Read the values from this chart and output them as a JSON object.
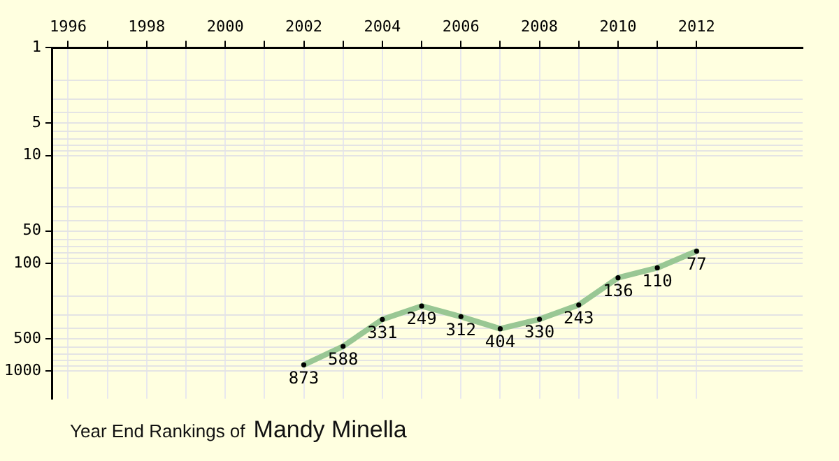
{
  "chart_data": {
    "type": "line",
    "title": "Year End Rankings of",
    "subtitle": "Mandy Minella",
    "x": [
      2002,
      2003,
      2004,
      2005,
      2006,
      2007,
      2008,
      2009,
      2010,
      2011,
      2012
    ],
    "series": [
      {
        "color": "#99c794",
        "values": [
          873,
          588,
          331,
          249,
          312,
          404,
          330,
          243,
          136,
          110,
          77
        ]
      }
    ],
    "xlim": [
      1995.6,
      2014.7
    ],
    "xticks": [
      1996,
      {
        "value": 1997,
        "label": null
      },
      1998,
      {
        "value": 1999,
        "label": null
      },
      2000,
      {
        "value": 2001,
        "label": null
      },
      2002,
      {
        "value": 2003,
        "label": null
      },
      2004,
      {
        "value": 2005,
        "label": null
      },
      2006,
      {
        "value": 2007,
        "label": null
      },
      2008,
      {
        "value": 2009,
        "label": null
      },
      2010,
      {
        "value": 2011,
        "label": null
      },
      2012
    ],
    "ylim": [
      1800,
      1
    ],
    "yticks": [
      1,
      {
        "value": 2,
        "label": null
      },
      {
        "value": 3,
        "label": null
      },
      {
        "value": 4,
        "label": null
      },
      5,
      {
        "value": 6,
        "label": null
      },
      {
        "value": 7,
        "label": null
      },
      {
        "value": 8,
        "label": null
      },
      {
        "value": 9,
        "label": null
      },
      10,
      {
        "value": 20,
        "label": null
      },
      {
        "value": 30,
        "label": null
      },
      {
        "value": 40,
        "label": null
      },
      50,
      {
        "value": 60,
        "label": null
      },
      {
        "value": 70,
        "label": null
      },
      {
        "value": 80,
        "label": null
      },
      {
        "value": 90,
        "label": null
      },
      100,
      {
        "value": 200,
        "label": null
      },
      {
        "value": 300,
        "label": null
      },
      {
        "value": 400,
        "label": null
      },
      500,
      {
        "value": 600,
        "label": null
      },
      {
        "value": 700,
        "label": null
      },
      {
        "value": 800,
        "label": null
      },
      {
        "value": 900,
        "label": null
      },
      1000
    ],
    "log": "y",
    "grid": true,
    "marker": "circle",
    "line_style": "solid",
    "data_labels": true,
    "legend": false
  }
}
